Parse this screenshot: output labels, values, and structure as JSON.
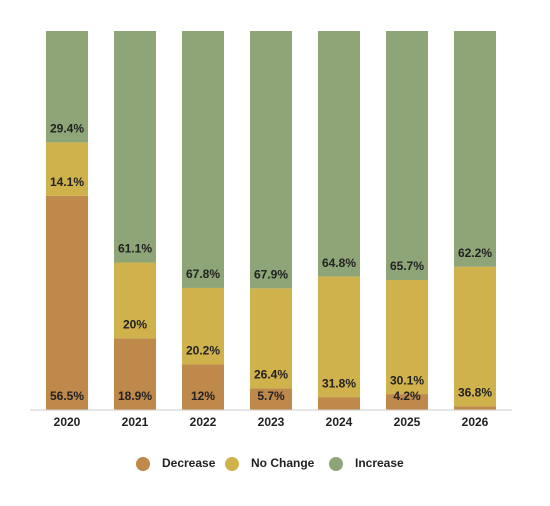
{
  "chart_data": {
    "type": "stacked-bar",
    "categories": [
      "2020",
      "2021",
      "2022",
      "2023",
      "2024",
      "2025",
      "2026"
    ],
    "series": [
      {
        "name": "Decrease",
        "color": "#bf894b",
        "values": [
          56.5,
          18.9,
          12,
          5.7,
          3.4,
          4.2,
          1.0
        ],
        "value_labels": [
          "56.5%",
          "18.9%",
          "12%",
          "5.7%",
          null,
          "4.2%",
          null
        ]
      },
      {
        "name": "No Change",
        "color": "#d0b24c",
        "values": [
          14.1,
          20,
          20.2,
          26.4,
          31.8,
          30.1,
          36.8
        ],
        "value_labels": [
          "14.1%",
          "20%",
          "20.2%",
          "26.4%",
          "31.8%",
          "30.1%",
          "36.8%"
        ]
      },
      {
        "name": "Increase",
        "color": "#8ea677",
        "values": [
          29.4,
          61.1,
          67.8,
          67.9,
          64.8,
          65.7,
          62.2
        ],
        "value_labels": [
          "29.4%",
          "61.1%",
          "67.8%",
          "67.9%",
          "64.8%",
          "65.7%",
          "62.2%"
        ]
      }
    ],
    "ylim": [
      0,
      100
    ]
  }
}
